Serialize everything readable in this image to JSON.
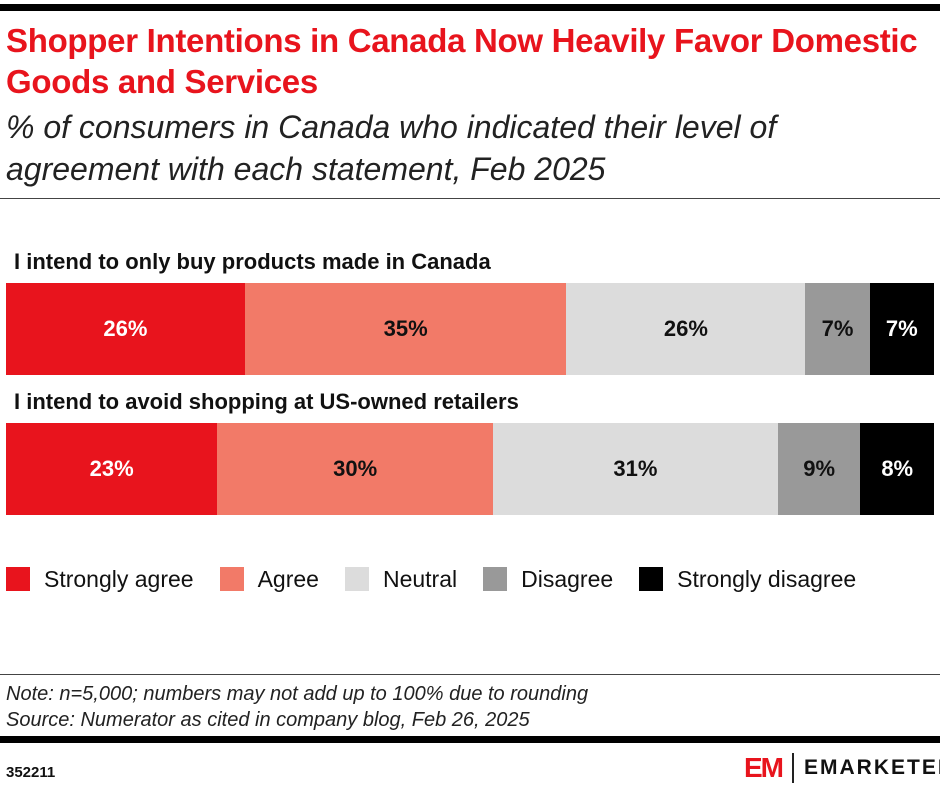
{
  "header": {
    "title": "Shopper Intentions in Canada Now Heavily Favor Domestic Goods and Services",
    "subtitle": "% of consumers in Canada who indicated their level of agreement with each statement, Feb 2025"
  },
  "chart_data": {
    "type": "bar",
    "orientation": "horizontal",
    "stacked": true,
    "categories": [
      "I intend to only buy products made in Canada",
      "I intend to avoid shopping at US-owned retailers"
    ],
    "series": [
      {
        "name": "Strongly agree",
        "color": "#e8141d",
        "values": [
          26,
          23
        ]
      },
      {
        "name": "Agree",
        "color": "#f27a68",
        "values": [
          35,
          30
        ]
      },
      {
        "name": "Neutral",
        "color": "#dcdcdc",
        "values": [
          26,
          31
        ]
      },
      {
        "name": "Disagree",
        "color": "#999999",
        "values": [
          7,
          9
        ]
      },
      {
        "name": "Strongly disagree",
        "color": "#000000",
        "values": [
          7,
          8
        ]
      }
    ],
    "unit": "%",
    "legend": "bottom"
  },
  "footer": {
    "note": "Note: n=5,000; numbers may not add up to 100% due to rounding",
    "source": "Source: Numerator as cited in company blog, Feb 26, 2025",
    "id": "352211",
    "logo_mark": "EM",
    "brand": "EMARKETER"
  }
}
